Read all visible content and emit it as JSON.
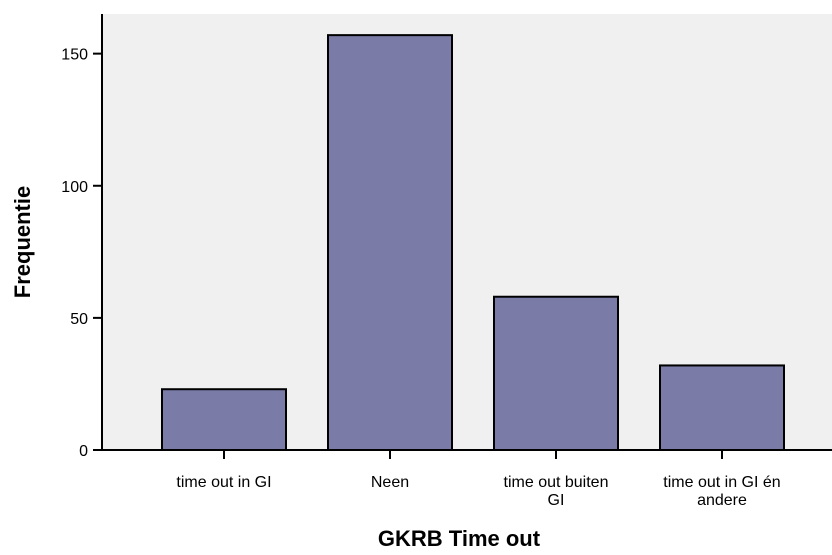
{
  "chart_data": {
    "type": "bar",
    "categories": [
      [
        "time out in GI"
      ],
      [
        "Neen"
      ],
      [
        "time out buiten",
        "GI"
      ],
      [
        "time out in GI én",
        "andere"
      ]
    ],
    "values": [
      23,
      157,
      58,
      32
    ],
    "xlabel": "GKRB Time out",
    "ylabel": "Frequentie",
    "ylim": [
      0,
      165
    ],
    "yticks": [
      0,
      50,
      100,
      150
    ],
    "grid": false,
    "colors": {
      "plot_background": "#f0f0f0",
      "bar_fill": "#7b7ba8",
      "bar_stroke": "#000000"
    }
  }
}
